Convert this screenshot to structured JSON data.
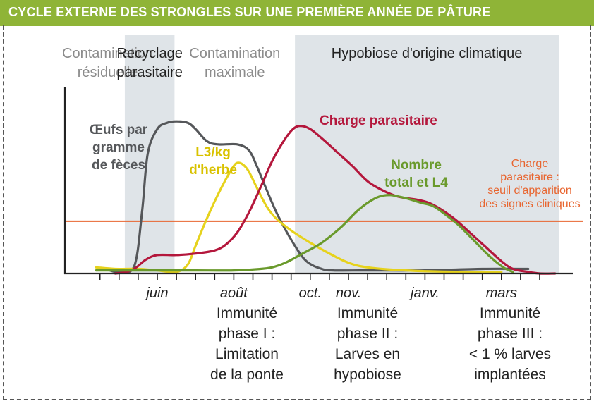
{
  "header": {
    "title": "CYCLE EXTERNE DES STRONGLES SUR UNE PREMIÈRE ANNÉE DE PÂTURE"
  },
  "phases": [
    {
      "lines": [
        "Contamination",
        "résiduelle"
      ],
      "shaded": false,
      "color": "#8c8c8c"
    },
    {
      "lines": [
        "Recyclage",
        "parasitaire"
      ],
      "shaded": true,
      "color": "#222222"
    },
    {
      "lines": [
        "Contamination",
        "maximale"
      ],
      "shaded": false,
      "color": "#8c8c8c"
    },
    {
      "lines": [
        "Hypobiose d'origine climatique"
      ],
      "shaded": true,
      "color": "#222222"
    }
  ],
  "immunity_phases": [
    {
      "text": "Immunité\nphase I :\nLimitation\nde la ponte"
    },
    {
      "text": "Immunité\nphase II :\nLarves en\nhypobiose"
    },
    {
      "text": "Immunité\nphase III :\n< 1 % larves\nimplantées"
    }
  ],
  "colors": {
    "header": "#8fb437",
    "shade": "#dfe4e8",
    "axis": "#222222"
  },
  "chart_data": {
    "type": "line",
    "title": "CYCLE EXTERNE DES STRONGLES SUR UNE PREMIÈRE ANNÉE DE PÂTURE",
    "x_unit": "month (0 = juin)",
    "x_ticks": [
      {
        "label": "juin",
        "x": 0
      },
      {
        "label": "août",
        "x": 2
      },
      {
        "label": "oct.",
        "x": 4
      },
      {
        "label": "nov.",
        "x": 5
      },
      {
        "label": "janv.",
        "x": 7
      },
      {
        "label": "mars",
        "x": 9
      }
    ],
    "xlim": [
      -1.75,
      10.5
    ],
    "ylim": [
      0,
      100
    ],
    "y_axis_labels": false,
    "grid": false,
    "legend": "inline labels on curves",
    "phases": [
      {
        "label": "Contamination résiduelle",
        "x_range": [
          -1.75,
          -0.85
        ]
      },
      {
        "label": "Recyclage parasitaire",
        "x_range": [
          -0.85,
          0.45
        ]
      },
      {
        "label": "Contamination maximale",
        "x_range": [
          0.45,
          3.6
        ]
      },
      {
        "label": "Hypobiose d'origine climatique",
        "x_range": [
          3.6,
          10.5
        ]
      }
    ],
    "series": [
      {
        "name": "Œufs par gramme de fèces",
        "color": "#55575a",
        "points": [
          [
            -1.25,
            2
          ],
          [
            -1.0,
            1
          ],
          [
            -0.6,
            5
          ],
          [
            -0.4,
            40
          ],
          [
            -0.25,
            78
          ],
          [
            0.0,
            94
          ],
          [
            0.25,
            98
          ],
          [
            0.5,
            99
          ],
          [
            0.8,
            98
          ],
          [
            1.0,
            94
          ],
          [
            1.3,
            86
          ],
          [
            1.6,
            84
          ],
          [
            2.1,
            84
          ],
          [
            2.4,
            80
          ],
          [
            2.6,
            70
          ],
          [
            2.85,
            55
          ],
          [
            3.15,
            38
          ],
          [
            3.55,
            20
          ],
          [
            3.9,
            8
          ],
          [
            4.3,
            3
          ],
          [
            4.6,
            2
          ],
          [
            5.5,
            2
          ],
          [
            7,
            2
          ],
          [
            8.5,
            3
          ],
          [
            9.7,
            3
          ]
        ]
      },
      {
        "name": "L3/kg d'herbe",
        "color": "#e6d21c",
        "points": [
          [
            -1.6,
            4
          ],
          [
            -1.1,
            3
          ],
          [
            -0.5,
            3
          ],
          [
            0,
            2
          ],
          [
            0.5,
            1
          ],
          [
            0.8,
            6
          ],
          [
            1.0,
            18
          ],
          [
            1.3,
            36
          ],
          [
            1.6,
            52
          ],
          [
            1.9,
            66
          ],
          [
            2.1,
            72
          ],
          [
            2.35,
            68
          ],
          [
            2.6,
            56
          ],
          [
            2.85,
            44
          ],
          [
            3.1,
            36
          ],
          [
            3.5,
            28
          ],
          [
            4.0,
            20
          ],
          [
            4.5,
            13
          ],
          [
            5.0,
            7
          ],
          [
            5.5,
            4
          ],
          [
            6.5,
            2
          ],
          [
            8.0,
            1
          ],
          [
            9.0,
            1
          ]
        ]
      },
      {
        "name": "Charge parasitaire",
        "color": "#b4173c",
        "points": [
          [
            -1.1,
            0
          ],
          [
            -0.8,
            1
          ],
          [
            -0.55,
            4
          ],
          [
            -0.3,
            9
          ],
          [
            0,
            12
          ],
          [
            0.5,
            12
          ],
          [
            1.0,
            13
          ],
          [
            1.5,
            15
          ],
          [
            1.8,
            19
          ],
          [
            2.1,
            27
          ],
          [
            2.4,
            40
          ],
          [
            2.7,
            56
          ],
          [
            3.0,
            73
          ],
          [
            3.3,
            86
          ],
          [
            3.55,
            94
          ],
          [
            3.75,
            96
          ],
          [
            4.0,
            94
          ],
          [
            4.3,
            88
          ],
          [
            4.7,
            79
          ],
          [
            5.1,
            70
          ],
          [
            5.5,
            60
          ],
          [
            5.9,
            54
          ],
          [
            6.3,
            50
          ],
          [
            6.8,
            48
          ],
          [
            7.1,
            46
          ],
          [
            7.4,
            42
          ],
          [
            7.8,
            35
          ],
          [
            8.2,
            26
          ],
          [
            8.6,
            17
          ],
          [
            9.0,
            8
          ],
          [
            9.3,
            3
          ],
          [
            9.7,
            1
          ],
          [
            10.0,
            0
          ],
          [
            10.4,
            0
          ]
        ]
      },
      {
        "name": "Nombre total et L4",
        "color": "#6a9a2c",
        "points": [
          [
            -1.6,
            2
          ],
          [
            -1.0,
            2
          ],
          [
            0,
            2
          ],
          [
            1,
            2
          ],
          [
            2,
            2
          ],
          [
            2.7,
            3
          ],
          [
            3.0,
            4
          ],
          [
            3.35,
            7
          ],
          [
            3.8,
            13
          ],
          [
            4.3,
            20
          ],
          [
            4.8,
            30
          ],
          [
            5.2,
            40
          ],
          [
            5.5,
            46
          ],
          [
            5.8,
            50
          ],
          [
            6.1,
            51
          ],
          [
            6.5,
            49
          ],
          [
            6.9,
            46
          ],
          [
            7.2,
            44
          ],
          [
            7.5,
            39
          ],
          [
            7.9,
            31
          ],
          [
            8.3,
            21
          ],
          [
            8.7,
            11
          ],
          [
            9.05,
            4
          ],
          [
            9.3,
            1
          ]
        ]
      }
    ],
    "threshold": {
      "label": "Charge parasitaire : seuil d'apparition des signes cliniques",
      "value": 34,
      "color": "#e8652f"
    }
  },
  "labels": {
    "eggs": [
      "Œufs par",
      "gramme",
      "de fèces"
    ],
    "l3": [
      "L3/kg",
      "d'herbe"
    ],
    "load": [
      "Charge parasitaire"
    ],
    "l4": [
      "Nombre",
      "total et L4"
    ],
    "threshold": [
      "Charge",
      "parasitaire :",
      "seuil d'apparition",
      "des signes cliniques"
    ]
  }
}
